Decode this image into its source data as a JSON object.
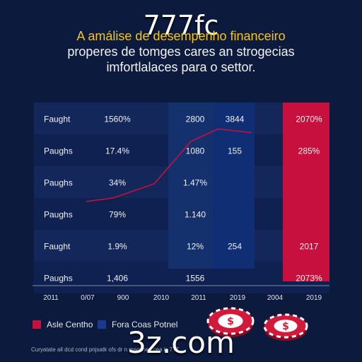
{
  "watermark_top": "777fc",
  "watermark_bottom": "3z.com",
  "title_lines": [
    "A amálise de desempenho financeiro",
    "properes de tomges cares an strogecias",
    "imfortlalaces para o settor."
  ],
  "chart_data": {
    "type": "table",
    "rows": [
      {
        "label": "Faught",
        "cells": [
          "1560%",
          "2800",
          "3844",
          "2070%"
        ]
      },
      {
        "label": "Paughs",
        "cells": [
          "17.4%",
          "1080",
          "155",
          "285%"
        ]
      },
      {
        "label": "Paughs",
        "cells": [
          "34%",
          "1.47%",
          "",
          ""
        ]
      },
      {
        "label": "Paughs",
        "cells": [
          "79%",
          "1.140",
          "",
          ""
        ]
      },
      {
        "label": "Faught",
        "cells": [
          "1.9%",
          "12%",
          "254",
          "2017"
        ]
      },
      {
        "label": "Paughs",
        "cells": [
          "1,406",
          "1556",
          "",
          "2073%"
        ]
      }
    ],
    "x_ticks": [
      "2011",
      "0/07",
      "900",
      "2010",
      "2011",
      "2019",
      "2004",
      "2019"
    ],
    "line_series": {
      "x_index": [
        0,
        1,
        2,
        3,
        4,
        5
      ],
      "y": [
        1.2,
        1.4,
        2.2,
        4.6,
        5.3,
        5.1
      ]
    },
    "legend": [
      {
        "label": "Asle Centho",
        "color": "#c8103e"
      },
      {
        "label": "Fora Coas Potnel",
        "color": "#1b3a8f"
      }
    ],
    "footnote": "Curyatate all dcd cond pnjsatk ofs dr n mscunes cea is 777",
    "colors": {
      "red_bar": "#c8103e",
      "blue_bar": "#0f2e73",
      "line": "#c8103e"
    }
  },
  "chips": [
    {
      "symbol": "$"
    },
    {
      "symbol": "$"
    }
  ]
}
